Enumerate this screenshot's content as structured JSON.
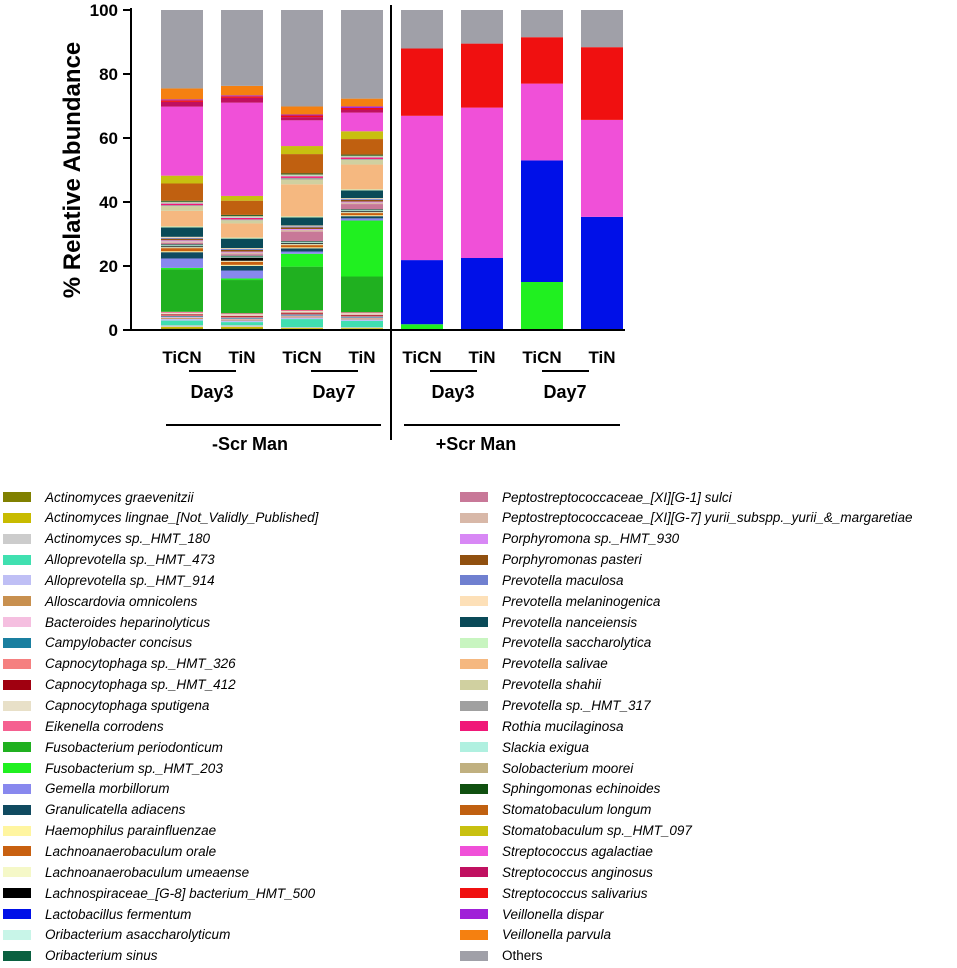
{
  "chart_data": {
    "type": "bar",
    "stacked": true,
    "title": "",
    "xlabel": "",
    "ylabel": "% Relative Abundance",
    "ylim": [
      0,
      100
    ],
    "yticks": [
      "0",
      "20",
      "40",
      "60",
      "80",
      "100"
    ],
    "categories": [
      "TiCN",
      "TiN",
      "TiCN",
      "TiN",
      "TiCN",
      "TiN",
      "TiCN",
      "TiN"
    ],
    "day_groups": [
      "Day3",
      "Day7",
      "Day3",
      "Day7"
    ],
    "treatment_groups": [
      "-Scr Man",
      "+Scr Man"
    ],
    "legend_columns": 2,
    "series": [
      {
        "name": "Actinomyces graevenitzii",
        "color": "#808000",
        "values": [
          0.5,
          0.5,
          0.3,
          0.3,
          0,
          0,
          0,
          0
        ]
      },
      {
        "name": "Actinomyces lingnae_[Not_Validly_Published]",
        "color": "#c8bb00",
        "values": [
          0.5,
          0.5,
          0.3,
          0.3,
          0,
          0,
          0,
          0
        ]
      },
      {
        "name": "Actinomyces sp._HMT_180",
        "color": "#cccccc",
        "values": [
          0.5,
          0.5,
          0.3,
          0.3,
          0,
          0,
          0,
          0
        ]
      },
      {
        "name": "Alloprevotella sp._HMT_473",
        "color": "#40e0b0",
        "values": [
          1.5,
          1.0,
          2.5,
          2.0,
          0,
          0,
          0,
          0
        ]
      },
      {
        "name": "Alloprevotella sp._HMT_914",
        "color": "#bfbff5",
        "values": [
          0.5,
          0.5,
          0.5,
          0.5,
          0,
          0,
          0,
          0
        ]
      },
      {
        "name": "Alloscardovia omnicolens",
        "color": "#c8904f",
        "values": [
          0.3,
          0.3,
          0.3,
          0.3,
          0,
          0,
          0,
          0
        ]
      },
      {
        "name": "Bacteroides heparinolyticus",
        "color": "#f5bfe0",
        "values": [
          0.3,
          0.3,
          0.3,
          0.3,
          0,
          0,
          0,
          0
        ]
      },
      {
        "name": "Campylobacter concisus",
        "color": "#1a7fa0",
        "values": [
          0.3,
          0.3,
          0.3,
          0.3,
          0,
          0,
          0,
          0
        ]
      },
      {
        "name": "Capnocytophaga sp._HMT_326",
        "color": "#f58080",
        "values": [
          0.3,
          0.3,
          0.3,
          0.3,
          0,
          0,
          0,
          0
        ]
      },
      {
        "name": "Capnocytophaga sp._HMT_412",
        "color": "#a00010",
        "values": [
          0.3,
          0.3,
          0.3,
          0.3,
          0,
          0,
          0,
          0
        ]
      },
      {
        "name": "Capnocytophaga sputigena",
        "color": "#e8e0c8",
        "values": [
          0.5,
          0.5,
          0.5,
          0.5,
          0,
          0,
          0,
          0
        ]
      },
      {
        "name": "Eikenella corrodens",
        "color": "#f56090",
        "values": [
          0.3,
          0.3,
          0.3,
          0.3,
          0,
          0,
          0,
          0
        ]
      },
      {
        "name": "Fusobacterium periodonticum",
        "color": "#20b020",
        "values": [
          13.5,
          10.5,
          13.5,
          11.5,
          0,
          0,
          0,
          0
        ]
      },
      {
        "name": "Fusobacterium sp._HMT_203",
        "color": "#20f020",
        "values": [
          0.5,
          0.5,
          4.0,
          18.0,
          1.8,
          0,
          15.0,
          0
        ]
      },
      {
        "name": "Gemella morbillorum",
        "color": "#8888ee",
        "values": [
          3.0,
          2.5,
          0.7,
          0.7,
          0,
          0,
          0,
          0
        ]
      },
      {
        "name": "Granulicatella adiacens",
        "color": "#104a60",
        "values": [
          2.0,
          1.5,
          1.0,
          0.7,
          0,
          0,
          0,
          0
        ]
      },
      {
        "name": "Haemophilus parainfluenzae",
        "color": "#fff5a0",
        "values": [
          0.3,
          0.3,
          0.3,
          0.3,
          0,
          0,
          0,
          0
        ]
      },
      {
        "name": "Lachnoanaerobaculum orale",
        "color": "#c86010",
        "values": [
          1.0,
          1.0,
          0.7,
          0.7,
          0,
          0,
          0,
          0
        ]
      },
      {
        "name": "Lachnoanaerobaculum umeaense",
        "color": "#f5f8c8",
        "values": [
          0.3,
          0.3,
          0.3,
          0.3,
          0,
          0,
          0,
          0
        ]
      },
      {
        "name": "Lachnospiraceae_[G-8] bacterium_HMT_500",
        "color": "#000000",
        "values": [
          0.3,
          1.0,
          0.3,
          0.3,
          0,
          0,
          0,
          0
        ]
      },
      {
        "name": "Lactobacillus fermentum",
        "color": "#0010e8",
        "values": [
          0,
          0,
          0,
          0,
          20.0,
          22.5,
          38.0,
          35.0
        ]
      },
      {
        "name": "Oribacterium asaccharolyticum",
        "color": "#c8f5e8",
        "values": [
          0.3,
          0.3,
          0.3,
          0.3,
          0,
          0,
          0,
          0
        ]
      },
      {
        "name": "Oribacterium sinus",
        "color": "#0a6040",
        "values": [
          0.3,
          0.3,
          0.3,
          0.3,
          0,
          0,
          0,
          0
        ]
      },
      {
        "name": "Peptostreptococcaceae_[XI][G-1] sulci",
        "color": "#c87898",
        "values": [
          0.5,
          0.5,
          3.0,
          1.7,
          0,
          0,
          0,
          0
        ]
      },
      {
        "name": "Peptostreptococcaceae_[XI][G-7] yurii_subspp._yurii_&_margaretiae",
        "color": "#d8b8a8",
        "values": [
          0.5,
          0.5,
          0.5,
          0.5,
          0,
          0,
          0,
          0
        ]
      },
      {
        "name": "Porphyromona sp._HMT_930",
        "color": "#d888f5",
        "values": [
          0.3,
          0.3,
          0.3,
          0.3,
          0,
          0,
          0,
          0
        ]
      },
      {
        "name": "Porphyromonas pasteri",
        "color": "#905010",
        "values": [
          0.5,
          0.5,
          0.5,
          0.5,
          0,
          0,
          0,
          0
        ]
      },
      {
        "name": "Prevotella maculosa",
        "color": "#7080d0",
        "values": [
          0.3,
          0.3,
          0.3,
          0.3,
          0,
          0,
          0,
          0
        ]
      },
      {
        "name": "Prevotella melaninogenica",
        "color": "#fde0b8",
        "values": [
          0.3,
          0.3,
          0.3,
          0.3,
          0,
          0,
          0,
          0
        ]
      },
      {
        "name": "Prevotella nanceiensis",
        "color": "#0a4a58",
        "values": [
          3.0,
          3.0,
          2.5,
          2.5,
          0,
          0,
          0,
          0
        ]
      },
      {
        "name": "Prevotella saccharolytica",
        "color": "#c8f5c0",
        "values": [
          0.3,
          0.3,
          0.3,
          0.3,
          0,
          0,
          0,
          0
        ]
      },
      {
        "name": "Prevotella salivae",
        "color": "#f5b880",
        "values": [
          5.0,
          4.5,
          10.0,
          8.0,
          0,
          0,
          0,
          0
        ]
      },
      {
        "name": "Prevotella shahii",
        "color": "#d0d0a0",
        "values": [
          1.5,
          1.0,
          1.5,
          1.5,
          0,
          0,
          0,
          0
        ]
      },
      {
        "name": "Prevotella sp._HMT_317",
        "color": "#a0a0a0",
        "values": [
          0.3,
          0.3,
          0.5,
          0.3,
          0,
          0,
          0,
          0
        ]
      },
      {
        "name": "Rothia mucilaginosa",
        "color": "#f01878",
        "values": [
          0.5,
          0.5,
          0.5,
          0.5,
          0,
          0,
          0,
          0
        ]
      },
      {
        "name": "Slackia exigua",
        "color": "#b0f0e0",
        "values": [
          0.3,
          0.3,
          0.3,
          0.3,
          0,
          0,
          0,
          0
        ]
      },
      {
        "name": "Solobacterium moorei",
        "color": "#c0b080",
        "values": [
          0.3,
          0.3,
          0.3,
          0.3,
          0,
          0,
          0,
          0
        ]
      },
      {
        "name": "Sphingomonas echinoides",
        "color": "#105010",
        "values": [
          0.3,
          0.3,
          0.3,
          0.3,
          0,
          0,
          0,
          0
        ]
      },
      {
        "name": "Stomatobaculum longum",
        "color": "#c06010",
        "values": [
          5.5,
          4.5,
          6.0,
          5.0,
          0,
          0,
          0,
          0
        ]
      },
      {
        "name": "Stomatobaculum sp._HMT_097",
        "color": "#c8c010",
        "values": [
          2.5,
          1.5,
          2.5,
          2.5,
          0,
          0,
          0,
          0
        ]
      },
      {
        "name": "Streptococcus agalactiae",
        "color": "#f050d8",
        "values": [
          22.0,
          29.5,
          8.0,
          6.0,
          45.0,
          47.0,
          24.0,
          30.0
        ]
      },
      {
        "name": "Streptococcus anginosus",
        "color": "#c01060",
        "values": [
          1.5,
          1.5,
          1.0,
          1.0,
          0,
          0,
          0,
          0
        ]
      },
      {
        "name": "Streptococcus salivarius",
        "color": "#f01010",
        "values": [
          0.5,
          0.5,
          0.5,
          0.5,
          21.0,
          20.0,
          14.5,
          22.5
        ]
      },
      {
        "name": "Veillonella dispar",
        "color": "#a020d8",
        "values": [
          0.3,
          0.3,
          0.3,
          0.5,
          0,
          0,
          0,
          0
        ]
      },
      {
        "name": "Veillonella parvula",
        "color": "#f58010",
        "values": [
          3.5,
          3.0,
          2.5,
          2.5,
          0,
          0,
          0,
          0
        ]
      },
      {
        "name": "Others",
        "color": "#a0a0a8",
        "values": [
          25.0,
          24.0,
          30.0,
          28.5,
          12.0,
          10.5,
          8.5,
          11.5
        ]
      }
    ]
  }
}
